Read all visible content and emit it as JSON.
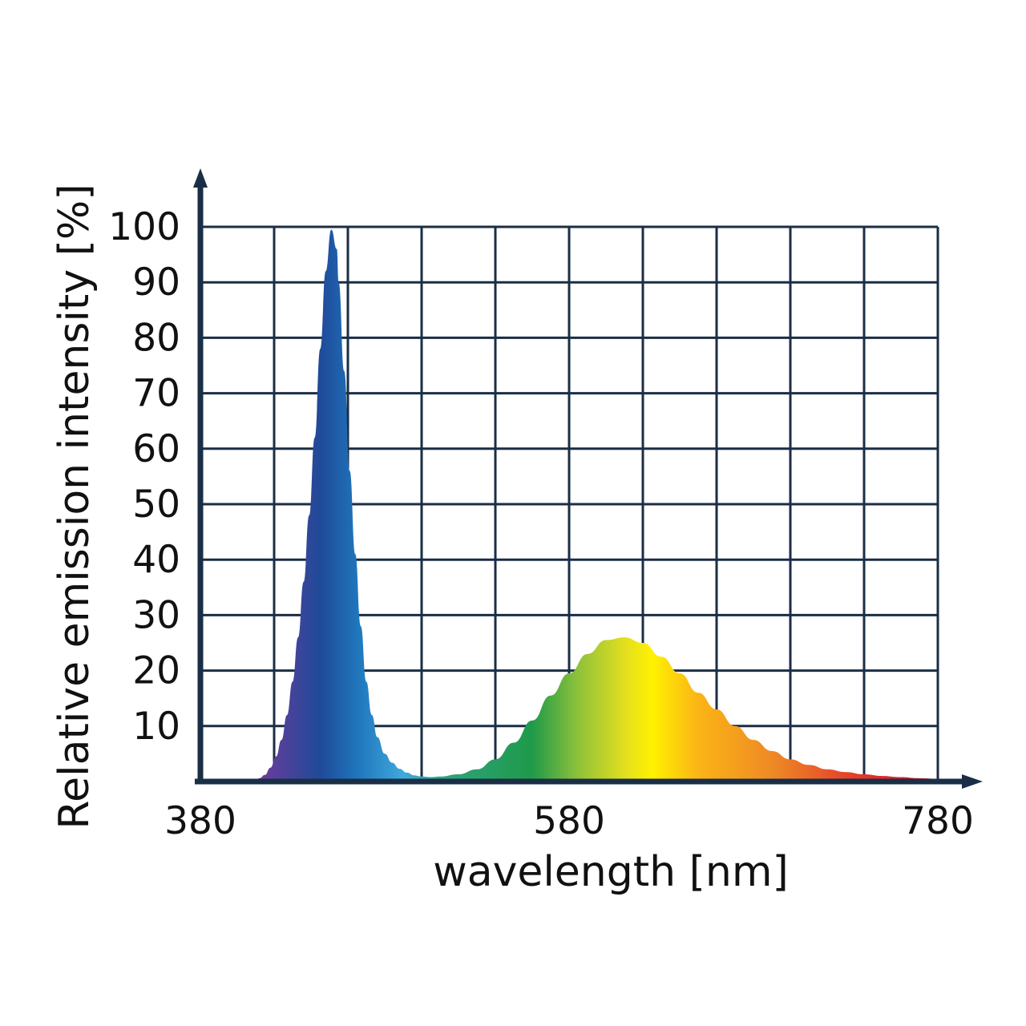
{
  "chart_data": {
    "type": "area",
    "title": "",
    "xlabel": "wavelength [nm]",
    "ylabel": "Relative emission intensity [%]",
    "xlim": [
      380,
      780
    ],
    "ylim": [
      0,
      100
    ],
    "x_ticks": [
      380,
      580,
      780
    ],
    "y_ticks": [
      10,
      20,
      30,
      40,
      50,
      60,
      70,
      80,
      90,
      100
    ],
    "grid": true,
    "legend": "none",
    "fill": "visible-spectrum gradient (violet to red)",
    "spectrum_stops": [
      {
        "x": 400,
        "color": "#8a3d92"
      },
      {
        "x": 420,
        "color": "#5a3f9a"
      },
      {
        "x": 445,
        "color": "#1f4a99"
      },
      {
        "x": 465,
        "color": "#1f75bb"
      },
      {
        "x": 490,
        "color": "#3fa9de"
      },
      {
        "x": 515,
        "color": "#2ea37a"
      },
      {
        "x": 560,
        "color": "#1f9a4a"
      },
      {
        "x": 585,
        "color": "#8fc23a"
      },
      {
        "x": 610,
        "color": "#e2de1f"
      },
      {
        "x": 625,
        "color": "#fff200"
      },
      {
        "x": 650,
        "color": "#fbb416"
      },
      {
        "x": 690,
        "color": "#ee8a25"
      },
      {
        "x": 730,
        "color": "#e4452a"
      },
      {
        "x": 760,
        "color": "#db1f2a"
      }
    ],
    "series": [
      {
        "x": [
          380,
          410,
          412,
          415,
          418,
          421,
          424,
          427,
          430,
          433,
          436,
          439,
          442,
          445,
          448,
          451,
          454,
          455,
          458,
          461,
          464,
          467,
          470,
          473,
          476,
          480,
          484,
          488,
          492,
          496,
          500,
          505,
          510,
          520,
          530,
          540,
          550,
          560,
          570,
          580,
          590,
          600,
          610,
          620,
          630,
          640,
          650,
          660,
          670,
          680,
          690,
          700,
          710,
          720,
          730,
          740,
          750,
          760,
          770,
          780
        ],
        "values": [
          0,
          0.3,
          0.6,
          1.2,
          2.5,
          4.5,
          7.5,
          12,
          18,
          26,
          36,
          48,
          62,
          78,
          92,
          99.5,
          96,
          90,
          74,
          56,
          41,
          28,
          18,
          12,
          8,
          5,
          3.4,
          2.3,
          1.6,
          1.1,
          0.9,
          0.8,
          0.9,
          1.3,
          2.2,
          4,
          7,
          11,
          15.5,
          19.5,
          23,
          25.5,
          26,
          25,
          22.5,
          19.5,
          16,
          13,
          10,
          7.5,
          5.5,
          4,
          3,
          2.2,
          1.7,
          1.3,
          1,
          0.8,
          0.6,
          0.5
        ]
      }
    ]
  }
}
